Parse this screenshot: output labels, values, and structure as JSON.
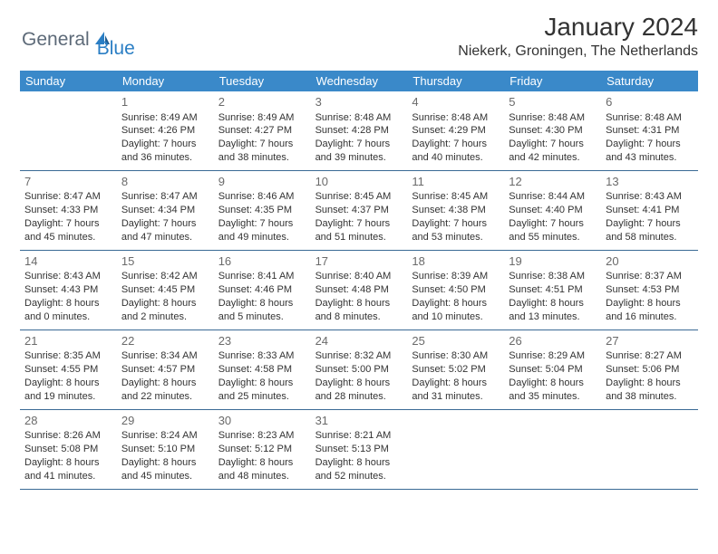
{
  "brand": {
    "part1": "General",
    "part2": "Blue"
  },
  "title": "January 2024",
  "location": "Niekerk, Groningen, The Netherlands",
  "colors": {
    "header_bg": "#3a89c9",
    "header_text": "#ffffff",
    "border": "#3a6a95",
    "brand_gray": "#5d6a78",
    "brand_blue": "#2a7ec4",
    "daynum": "#6a6a6a",
    "body_text": "#333333",
    "background": "#ffffff"
  },
  "weekdays": [
    "Sunday",
    "Monday",
    "Tuesday",
    "Wednesday",
    "Thursday",
    "Friday",
    "Saturday"
  ],
  "blanks_before": 1,
  "blanks_after": 3,
  "days": [
    {
      "n": 1,
      "sunrise": "8:49 AM",
      "sunset": "4:26 PM",
      "daylight": "7 hours and 36 minutes."
    },
    {
      "n": 2,
      "sunrise": "8:49 AM",
      "sunset": "4:27 PM",
      "daylight": "7 hours and 38 minutes."
    },
    {
      "n": 3,
      "sunrise": "8:48 AM",
      "sunset": "4:28 PM",
      "daylight": "7 hours and 39 minutes."
    },
    {
      "n": 4,
      "sunrise": "8:48 AM",
      "sunset": "4:29 PM",
      "daylight": "7 hours and 40 minutes."
    },
    {
      "n": 5,
      "sunrise": "8:48 AM",
      "sunset": "4:30 PM",
      "daylight": "7 hours and 42 minutes."
    },
    {
      "n": 6,
      "sunrise": "8:48 AM",
      "sunset": "4:31 PM",
      "daylight": "7 hours and 43 minutes."
    },
    {
      "n": 7,
      "sunrise": "8:47 AM",
      "sunset": "4:33 PM",
      "daylight": "7 hours and 45 minutes."
    },
    {
      "n": 8,
      "sunrise": "8:47 AM",
      "sunset": "4:34 PM",
      "daylight": "7 hours and 47 minutes."
    },
    {
      "n": 9,
      "sunrise": "8:46 AM",
      "sunset": "4:35 PM",
      "daylight": "7 hours and 49 minutes."
    },
    {
      "n": 10,
      "sunrise": "8:45 AM",
      "sunset": "4:37 PM",
      "daylight": "7 hours and 51 minutes."
    },
    {
      "n": 11,
      "sunrise": "8:45 AM",
      "sunset": "4:38 PM",
      "daylight": "7 hours and 53 minutes."
    },
    {
      "n": 12,
      "sunrise": "8:44 AM",
      "sunset": "4:40 PM",
      "daylight": "7 hours and 55 minutes."
    },
    {
      "n": 13,
      "sunrise": "8:43 AM",
      "sunset": "4:41 PM",
      "daylight": "7 hours and 58 minutes."
    },
    {
      "n": 14,
      "sunrise": "8:43 AM",
      "sunset": "4:43 PM",
      "daylight": "8 hours and 0 minutes."
    },
    {
      "n": 15,
      "sunrise": "8:42 AM",
      "sunset": "4:45 PM",
      "daylight": "8 hours and 2 minutes."
    },
    {
      "n": 16,
      "sunrise": "8:41 AM",
      "sunset": "4:46 PM",
      "daylight": "8 hours and 5 minutes."
    },
    {
      "n": 17,
      "sunrise": "8:40 AM",
      "sunset": "4:48 PM",
      "daylight": "8 hours and 8 minutes."
    },
    {
      "n": 18,
      "sunrise": "8:39 AM",
      "sunset": "4:50 PM",
      "daylight": "8 hours and 10 minutes."
    },
    {
      "n": 19,
      "sunrise": "8:38 AM",
      "sunset": "4:51 PM",
      "daylight": "8 hours and 13 minutes."
    },
    {
      "n": 20,
      "sunrise": "8:37 AM",
      "sunset": "4:53 PM",
      "daylight": "8 hours and 16 minutes."
    },
    {
      "n": 21,
      "sunrise": "8:35 AM",
      "sunset": "4:55 PM",
      "daylight": "8 hours and 19 minutes."
    },
    {
      "n": 22,
      "sunrise": "8:34 AM",
      "sunset": "4:57 PM",
      "daylight": "8 hours and 22 minutes."
    },
    {
      "n": 23,
      "sunrise": "8:33 AM",
      "sunset": "4:58 PM",
      "daylight": "8 hours and 25 minutes."
    },
    {
      "n": 24,
      "sunrise": "8:32 AM",
      "sunset": "5:00 PM",
      "daylight": "8 hours and 28 minutes."
    },
    {
      "n": 25,
      "sunrise": "8:30 AM",
      "sunset": "5:02 PM",
      "daylight": "8 hours and 31 minutes."
    },
    {
      "n": 26,
      "sunrise": "8:29 AM",
      "sunset": "5:04 PM",
      "daylight": "8 hours and 35 minutes."
    },
    {
      "n": 27,
      "sunrise": "8:27 AM",
      "sunset": "5:06 PM",
      "daylight": "8 hours and 38 minutes."
    },
    {
      "n": 28,
      "sunrise": "8:26 AM",
      "sunset": "5:08 PM",
      "daylight": "8 hours and 41 minutes."
    },
    {
      "n": 29,
      "sunrise": "8:24 AM",
      "sunset": "5:10 PM",
      "daylight": "8 hours and 45 minutes."
    },
    {
      "n": 30,
      "sunrise": "8:23 AM",
      "sunset": "5:12 PM",
      "daylight": "8 hours and 48 minutes."
    },
    {
      "n": 31,
      "sunrise": "8:21 AM",
      "sunset": "5:13 PM",
      "daylight": "8 hours and 52 minutes."
    }
  ],
  "labels": {
    "sunrise": "Sunrise:",
    "sunset": "Sunset:",
    "daylight": "Daylight:"
  }
}
